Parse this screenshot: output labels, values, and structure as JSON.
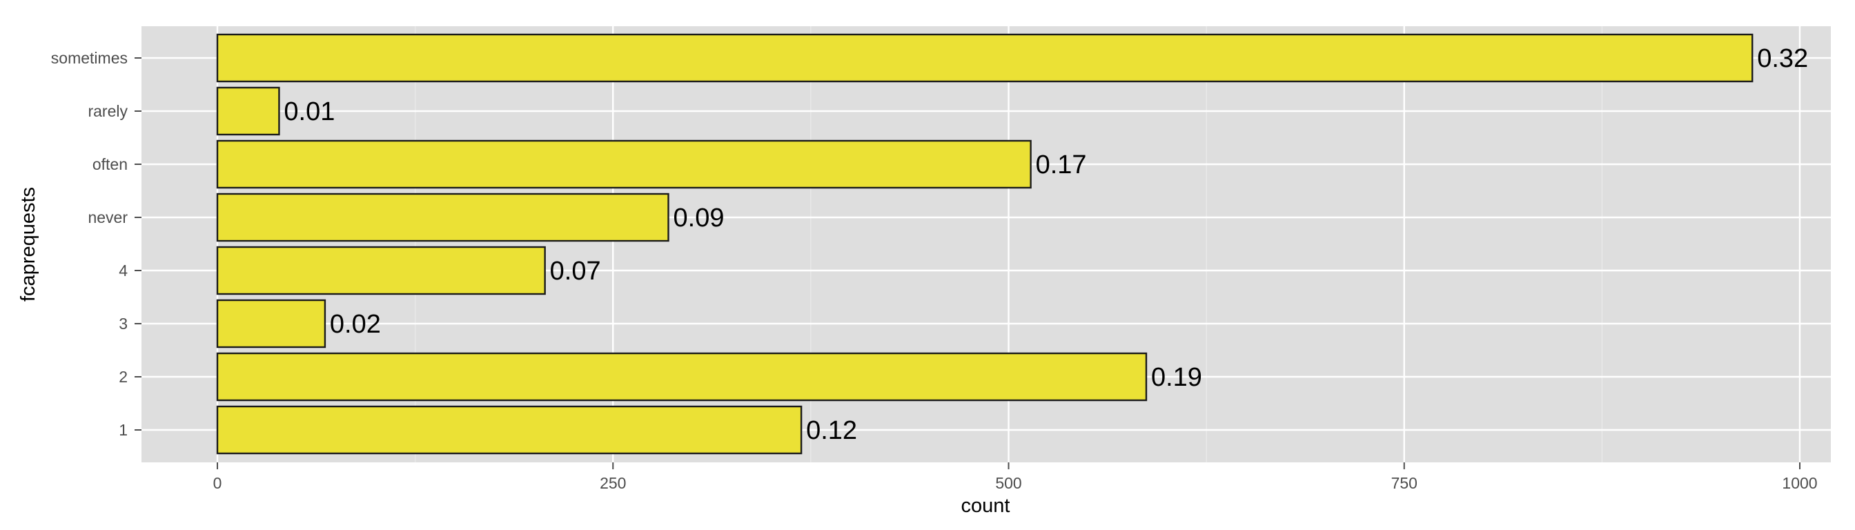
{
  "chart_data": {
    "type": "bar",
    "orientation": "horizontal",
    "categories": [
      "1",
      "2",
      "3",
      "4",
      "never",
      "often",
      "rarely",
      "sometimes"
    ],
    "values": [
      369,
      587,
      68,
      207,
      285,
      514,
      39,
      970
    ],
    "data_labels": [
      "0.12",
      "0.19",
      "0.02",
      "0.07",
      "0.09",
      "0.17",
      "0.01",
      "0.32"
    ],
    "xlabel": "count",
    "ylabel": "fcaprequests",
    "xlim": [
      0,
      1000
    ],
    "x_ticks": [
      0,
      250,
      500,
      750,
      1000
    ],
    "x_tick_labels": [
      "0",
      "250",
      "500",
      "750",
      "1000"
    ],
    "grid": true,
    "colors": {
      "panel": "#dedede",
      "grid": "#ffffff",
      "bar_fill": "#ebe135",
      "bar_stroke": "#1a1a1a",
      "tick_text": "#4d4d4d",
      "title_text": "#000000"
    }
  }
}
